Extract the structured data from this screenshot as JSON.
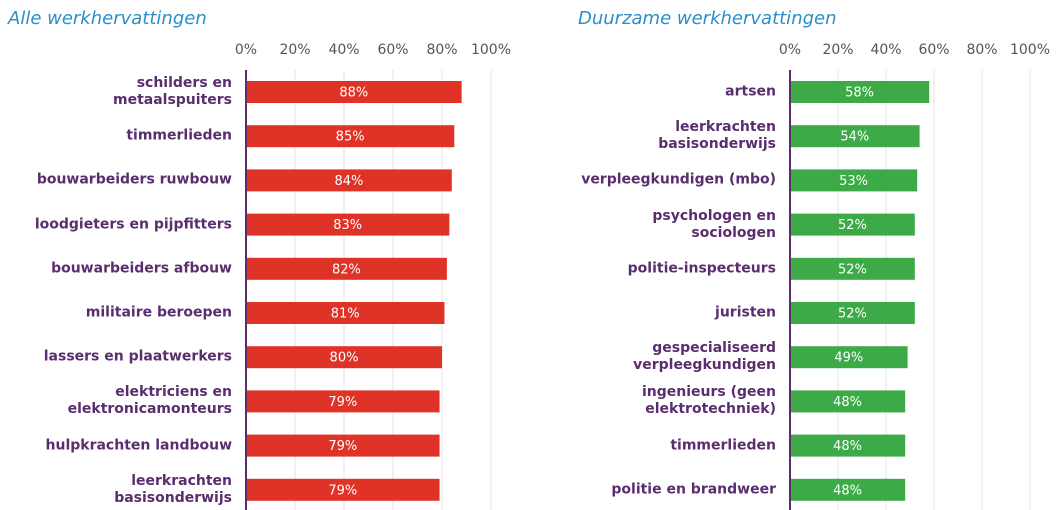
{
  "chart_data": [
    {
      "type": "hbar",
      "title": "Alle werkhervattingen",
      "categories": [
        "schilders en\nmetaalspuiters",
        "timmerlieden",
        "bouwarbeiders ruwbouw",
        "loodgieters en pijpfitters",
        "bouwarbeiders afbouw",
        "militaire beroepen",
        "lassers en plaatwerkers",
        "elektriciens en\nelektronicamonteurs",
        "hulpkrachten landbouw",
        "leerkrachten\nbasisonderwijs"
      ],
      "values": [
        88,
        85,
        84,
        83,
        82,
        81,
        80,
        79,
        79,
        79
      ],
      "value_labels": [
        "88%",
        "85%",
        "84%",
        "83%",
        "82%",
        "81%",
        "80%",
        "79%",
        "79%",
        "79%"
      ],
      "color": "#e03327",
      "xlim": [
        0,
        100
      ],
      "xticks": [
        {
          "value": 0,
          "label": "0%"
        },
        {
          "value": 20,
          "label": "20%"
        },
        {
          "value": 40,
          "label": "40%"
        },
        {
          "value": 60,
          "label": "60%"
        },
        {
          "value": 80,
          "label": "80%"
        },
        {
          "value": 100,
          "label": "100%"
        }
      ],
      "grid": true
    },
    {
      "type": "hbar",
      "title": "Duurzame werkhervattingen",
      "categories": [
        "artsen",
        "leerkrachten\nbasisonderwijs",
        "verpleegkundigen (mbo)",
        "psychologen en\nsociologen",
        "politie-inspecteurs",
        "juristen",
        "gespecialiseerd\nverpleegkundigen",
        "ingenieurs (geen\nelektrotechniek)",
        "timmerlieden",
        "politie en brandweer"
      ],
      "values": [
        58,
        54,
        53,
        52,
        52,
        52,
        49,
        48,
        48,
        48
      ],
      "value_labels": [
        "58%",
        "54%",
        "53%",
        "52%",
        "52%",
        "52%",
        "49%",
        "48%",
        "48%",
        "48%"
      ],
      "color": "#3daa48",
      "xlim": [
        0,
        100
      ],
      "xticks": [
        {
          "value": 0,
          "label": "0%"
        },
        {
          "value": 20,
          "label": "20%"
        },
        {
          "value": 40,
          "label": "40%"
        },
        {
          "value": 60,
          "label": "60%"
        },
        {
          "value": 80,
          "label": "80%"
        },
        {
          "value": 100,
          "label": "100%"
        }
      ],
      "grid": true
    }
  ]
}
